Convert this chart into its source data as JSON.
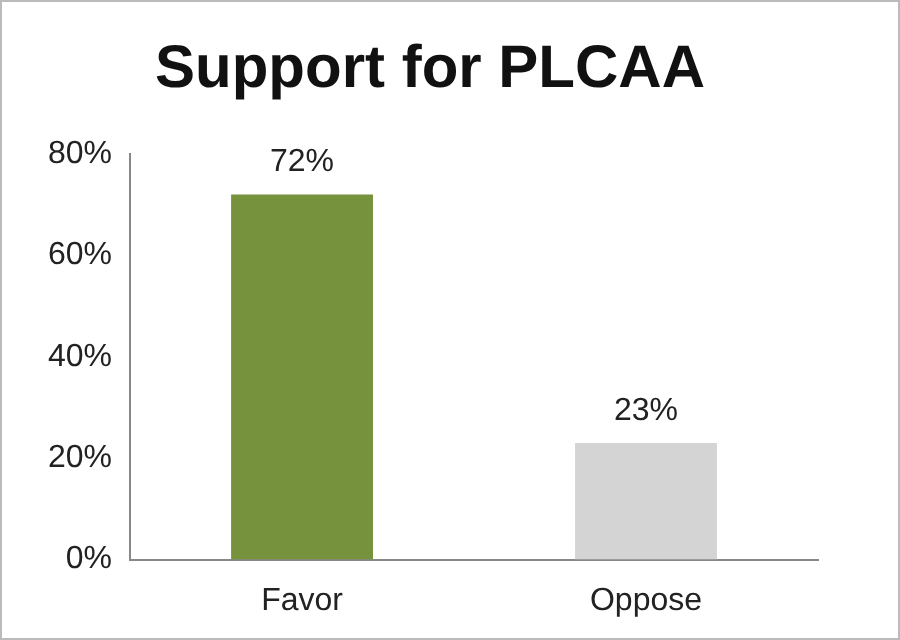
{
  "chart_data": {
    "type": "bar",
    "title": "Support for PLCAA",
    "categories": [
      "Favor",
      "Oppose"
    ],
    "values": [
      72,
      23
    ],
    "colors": [
      "#77923c",
      "#d4d4d4"
    ],
    "value_labels": [
      "72%",
      "23%"
    ],
    "ylim": [
      0,
      80
    ],
    "yticks": [
      {
        "value": 0,
        "label": "0%"
      },
      {
        "value": 20,
        "label": "20%"
      },
      {
        "value": 40,
        "label": "40%"
      },
      {
        "value": 60,
        "label": "60%"
      },
      {
        "value": 80,
        "label": "80%"
      }
    ],
    "grid": false,
    "legend": false
  }
}
